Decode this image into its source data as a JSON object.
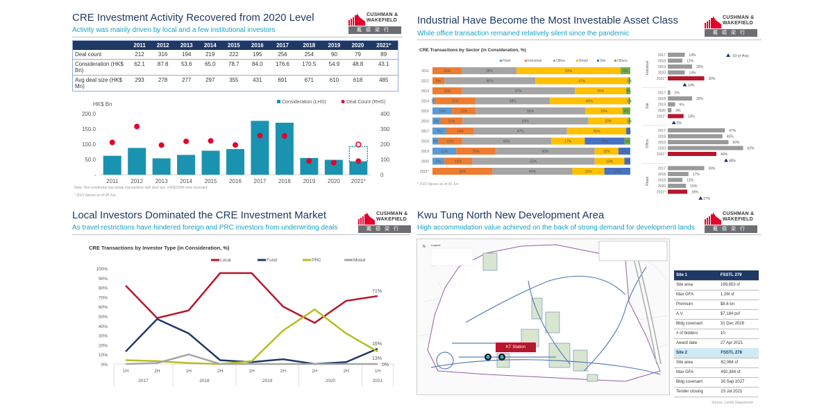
{
  "brand": {
    "line1": "CUSHMAN &",
    "line2": "WAKEFIELD",
    "chinese": "戴德梁行",
    "red": "#e4002b",
    "grey": "#6d6e71"
  },
  "panel1": {
    "title": "CRE Investment Activity Recovered from 2020 Level",
    "subtitle": "Activity was mainly driven by local and a few institutional investors",
    "table": {
      "headers": [
        "",
        "2011",
        "2012",
        "2013",
        "2014",
        "2015",
        "2016",
        "2017",
        "2018",
        "2019",
        "2020",
        "2021*"
      ],
      "rows": [
        {
          "label": "Deal count",
          "values": [
            "212",
            "316",
            "194",
            "219",
            "222",
            "195",
            "256",
            "254",
            "90",
            "79",
            "89"
          ]
        },
        {
          "label": "Consideration (HK$ Bn)",
          "values": [
            "62.1",
            "87.8",
            "53.6",
            "65.0",
            "78.7",
            "84.0",
            "176.6",
            "170.5",
            "54.9",
            "48.8",
            "43.1"
          ]
        },
        {
          "label": "Avg deal size (HK$ Mn)",
          "values": [
            "293",
            "278",
            "277",
            "297",
            "355",
            "431",
            "691",
            "671",
            "610",
            "618",
            "485"
          ]
        }
      ]
    },
    "note1": "Note: Non-residential real estate transactions with deal size >HK$100M were recorded",
    "note2": "* 2021 figures as of 30 Jun"
  },
  "panel2": {
    "title": "Industrial Have Become the Most Investable Asset Class",
    "subtitle": "While office transaction remained relatively silent since the pandemic",
    "note": "* 2021 figures as of 30 Jun"
  },
  "panel3": {
    "title": "Local Investors Dominated the CRE Investment Market",
    "subtitle": "As travel restrictions have hindered foreign and PRC investors from underwriting deals"
  },
  "panel4": {
    "title": "Kwu Tung North New Development Area",
    "subtitle": "High accommodation value achieved on the back of strong demand for development lands",
    "map": {
      "station_label": "KT Station",
      "legend_title": "Legend",
      "north": "N",
      "markers": [
        "2",
        "1"
      ]
    },
    "site1": {
      "header": [
        "Site 1",
        "FSSTL 279"
      ],
      "rows": [
        [
          "Site area",
          "199,853 sf"
        ],
        [
          "Max GFA",
          "1.2M sf"
        ],
        [
          "Premium",
          "$8.6 bn"
        ],
        [
          "A.V.",
          "$7,184 psf"
        ],
        [
          "Bldg covenant",
          "31 Dec 2028"
        ],
        [
          "# of bidders",
          "10"
        ],
        [
          "Award date",
          "27 Apr 2021"
        ]
      ]
    },
    "site2": {
      "header": [
        "Site 2",
        "FSSTL 278"
      ],
      "rows": [
        [
          "Site area",
          "82,064 sf"
        ],
        [
          "Max GFA",
          "492,384 sf"
        ],
        [
          "Bldg covenant",
          "30 Sep 2027"
        ],
        [
          "Tender closing",
          "23 Jul 2021"
        ]
      ]
    },
    "source": "Source: Lands Department"
  },
  "chart_data": [
    {
      "type": "bar",
      "title": "",
      "ylabel": "HK$ Bn",
      "categories": [
        "2011",
        "2012",
        "2013",
        "2014",
        "2015",
        "2016",
        "2017",
        "2018",
        "2019",
        "2020",
        "2021*"
      ],
      "series": [
        {
          "name": "Consideration (LHS)",
          "type": "bar",
          "axis": "left",
          "color": "#1a93b0",
          "values": [
            62.1,
            87.8,
            53.6,
            65.0,
            78.7,
            84.0,
            176.6,
            170.5,
            54.9,
            48.8,
            43.1
          ]
        },
        {
          "name": "Deal Count (RHS)",
          "type": "scatter",
          "axis": "right",
          "color": "#e4002b",
          "values": [
            212,
            316,
            194,
            219,
            222,
            195,
            256,
            254,
            90,
            79,
            89
          ]
        }
      ],
      "projection_2021": {
        "consideration": 92,
        "deal_count": 198
      },
      "ylim": [
        0,
        200
      ],
      "y2lim": [
        0,
        400
      ],
      "yticks": [
        "-",
        "50.0",
        "100.0",
        "150.0",
        "200.0"
      ],
      "y2ticks": [
        "0",
        "100",
        "200",
        "300",
        "400"
      ],
      "legend": "top-right"
    },
    {
      "type": "bar",
      "stacked": true,
      "orientation": "horizontal",
      "title": "CRE  Transactions by Sector (in Consideration, %)",
      "categories": [
        "2011",
        "2012",
        "2013",
        "2014",
        "2015",
        "2016",
        "2017",
        "2018",
        "2019",
        "2020",
        "2021*"
      ],
      "series": [
        {
          "name": "Hotel",
          "color": "#5b9bd5",
          "values": [
            0,
            0,
            0,
            1,
            10,
            4,
            7,
            3,
            12,
            6,
            0
          ]
        },
        {
          "name": "Industrial",
          "color": "#ed7d31",
          "values": [
            15,
            6,
            15,
            21,
            12,
            11,
            14,
            12,
            20,
            14,
            30
          ]
        },
        {
          "name": "Office",
          "color": "#a5a5a5",
          "values": [
            28,
            46,
            57,
            38,
            56,
            63,
            47,
            45,
            50,
            62,
            40
          ]
        },
        {
          "name": "Retail",
          "color": "#ffc000",
          "values": [
            53,
            47,
            26,
            40,
            19,
            20,
            30,
            17,
            12,
            15,
            16
          ]
        },
        {
          "name": "Site",
          "color": "#4472c4",
          "values": [
            0,
            0,
            0,
            0,
            0,
            0,
            2,
            20,
            6,
            3,
            13
          ]
        },
        {
          "name": "Others",
          "color": "#70ad47",
          "values": [
            5,
            1,
            2,
            1,
            4,
            1,
            0,
            3,
            0,
            0,
            0
          ]
        }
      ],
      "legend": "top-right"
    },
    {
      "type": "bar",
      "orientation": "horizontal",
      "title": "",
      "legend_label": "10-yr Avg",
      "groups": [
        {
          "name": "Industrial",
          "years": [
            "2017",
            "2018",
            "2019",
            "2020",
            "2021*"
          ],
          "values": [
            14,
            12,
            20,
            14,
            30
          ],
          "avg": 14
        },
        {
          "name": "Site",
          "years": [
            "2017",
            "2018",
            "2019",
            "2020",
            "2021*"
          ],
          "values": [
            2,
            20,
            6,
            3,
            13
          ],
          "avg": 5
        },
        {
          "name": "Office",
          "years": [
            "2017",
            "2018",
            "2019",
            "2020",
            "2021*"
          ],
          "values": [
            47,
            45,
            50,
            62,
            40
          ],
          "avg": 48
        },
        {
          "name": "Retail",
          "years": [
            "2017",
            "2018",
            "2019",
            "2020",
            "2021*"
          ],
          "values": [
            30,
            17,
            12,
            15,
            16
          ],
          "avg": 27
        }
      ],
      "colors": {
        "normal": "#999999",
        "highlight": "#b5172d",
        "avg": "#1f3864"
      }
    },
    {
      "type": "line",
      "title": "CRE Transactions by Investor Type (in Consideration, %)",
      "x": [
        "1H",
        "2H",
        "1H",
        "2H",
        "1H",
        "2H",
        "1H",
        "2H",
        "1H"
      ],
      "x_groups": [
        {
          "label": "2017",
          "span": 2
        },
        {
          "label": "2018",
          "span": 2
        },
        {
          "label": "2019",
          "span": 2
        },
        {
          "label": "2020",
          "span": 2
        },
        {
          "label": "2021",
          "span": 1
        }
      ],
      "series": [
        {
          "name": "Local",
          "color": "#b5172d",
          "values": [
            82,
            48,
            56,
            95,
            95,
            60,
            43,
            66,
            71
          ]
        },
        {
          "name": "Fund",
          "color": "#1f3864",
          "values": [
            13,
            47,
            32,
            4,
            2,
            5,
            0,
            2,
            16
          ]
        },
        {
          "name": "PRC",
          "color": "#b5bd21",
          "values": [
            4,
            3,
            1,
            0,
            3,
            35,
            57,
            32,
            13
          ]
        },
        {
          "name": "Mixed",
          "color": "#a5a5a5",
          "values": [
            0,
            1,
            10,
            0,
            0,
            0,
            0,
            0,
            0
          ]
        }
      ],
      "end_labels": [
        "71%",
        "16%",
        "13%",
        "0%"
      ],
      "ylim": [
        0,
        100
      ],
      "yticks": [
        "0%",
        "10%",
        "20%",
        "30%",
        "40%",
        "50%",
        "60%",
        "70%",
        "80%",
        "90%",
        "100%"
      ],
      "legend": "top"
    }
  ]
}
